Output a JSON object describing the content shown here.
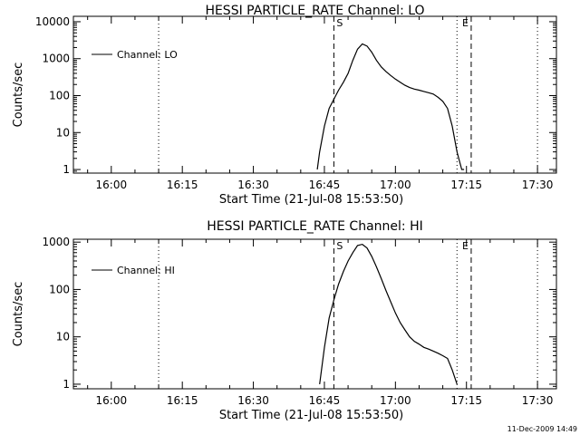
{
  "chart_data": [
    {
      "type": "line",
      "title": "HESSI PARTICLE_RATE Channel: LO",
      "xlabel": "Start Time (21-Jul-08 15:53:50)",
      "ylabel": "Counts/sec",
      "yscale": "log",
      "xlim": [
        "15:52",
        "17:34"
      ],
      "ylim": [
        0.8,
        14000
      ],
      "x_ticks": [
        "16:00",
        "16:15",
        "16:30",
        "16:45",
        "17:00",
        "17:15",
        "17:30"
      ],
      "y_ticks": [
        "1",
        "10",
        "100",
        "1000",
        "10000"
      ],
      "legend": "top-left",
      "markers": [
        {
          "label": "S",
          "time": "16:47",
          "style": "dashed"
        },
        {
          "label": "E",
          "time": "17:16",
          "style": "dashed"
        },
        {
          "label": "",
          "time": "16:10",
          "style": "dotted"
        },
        {
          "label": "",
          "time": "17:13",
          "style": "dotted"
        },
        {
          "label": "",
          "time": "17:30",
          "style": "dotted"
        }
      ],
      "series": [
        {
          "name": "Channel: LO",
          "x": [
            "16:43.5",
            "16:44",
            "16:45",
            "16:46",
            "16:47",
            "16:48",
            "16:49",
            "16:50",
            "16:51",
            "16:52",
            "16:53",
            "16:54",
            "16:55",
            "16:56",
            "16:57",
            "16:58",
            "16:59",
            "17:00",
            "17:01",
            "17:02",
            "17:03",
            "17:04",
            "17:05",
            "17:06",
            "17:07",
            "17:08",
            "17:09",
            "17:10",
            "17:11",
            "17:12",
            "17:13",
            "17:14",
            "17:14.5"
          ],
          "values": [
            1,
            3,
            15,
            45,
            80,
            140,
            230,
            400,
            900,
            1800,
            2500,
            2200,
            1500,
            900,
            600,
            450,
            350,
            280,
            230,
            190,
            165,
            150,
            140,
            130,
            120,
            110,
            90,
            70,
            45,
            15,
            3,
            1,
            1
          ]
        }
      ]
    },
    {
      "type": "line",
      "title": "HESSI PARTICLE_RATE Channel: HI",
      "xlabel": "Start Time (21-Jul-08 15:53:50)",
      "ylabel": "Counts/sec",
      "yscale": "log",
      "xlim": [
        "15:52",
        "17:34"
      ],
      "ylim": [
        0.8,
        1150
      ],
      "x_ticks": [
        "16:00",
        "16:15",
        "16:30",
        "16:45",
        "17:00",
        "17:15",
        "17:30"
      ],
      "y_ticks": [
        "1",
        "10",
        "100",
        "1000"
      ],
      "legend": "top-left",
      "markers": [
        {
          "label": "S",
          "time": "16:47",
          "style": "dashed"
        },
        {
          "label": "E",
          "time": "17:16",
          "style": "dashed"
        },
        {
          "label": "",
          "time": "16:10",
          "style": "dotted"
        },
        {
          "label": "",
          "time": "17:13",
          "style": "dotted"
        },
        {
          "label": "",
          "time": "17:30",
          "style": "dotted"
        }
      ],
      "series": [
        {
          "name": "Channel: HI",
          "x": [
            "16:44",
            "16:45",
            "16:46",
            "16:47",
            "16:48",
            "16:49",
            "16:50",
            "16:51",
            "16:52",
            "16:53",
            "16:54",
            "16:55",
            "16:56",
            "16:57",
            "16:58",
            "16:59",
            "17:00",
            "17:01",
            "17:02",
            "17:03",
            "17:04",
            "17:05",
            "17:06",
            "17:07",
            "17:08",
            "17:09",
            "17:10",
            "17:11",
            "17:12",
            "17:13"
          ],
          "values": [
            1,
            6,
            25,
            60,
            130,
            240,
            400,
            600,
            850,
            900,
            750,
            500,
            300,
            170,
            95,
            55,
            32,
            20,
            14,
            10,
            8,
            7,
            6,
            5.5,
            5,
            4.5,
            4,
            3.5,
            2,
            1
          ]
        }
      ]
    }
  ],
  "footer": {
    "timestamp": "11-Dec-2009 14:49"
  }
}
